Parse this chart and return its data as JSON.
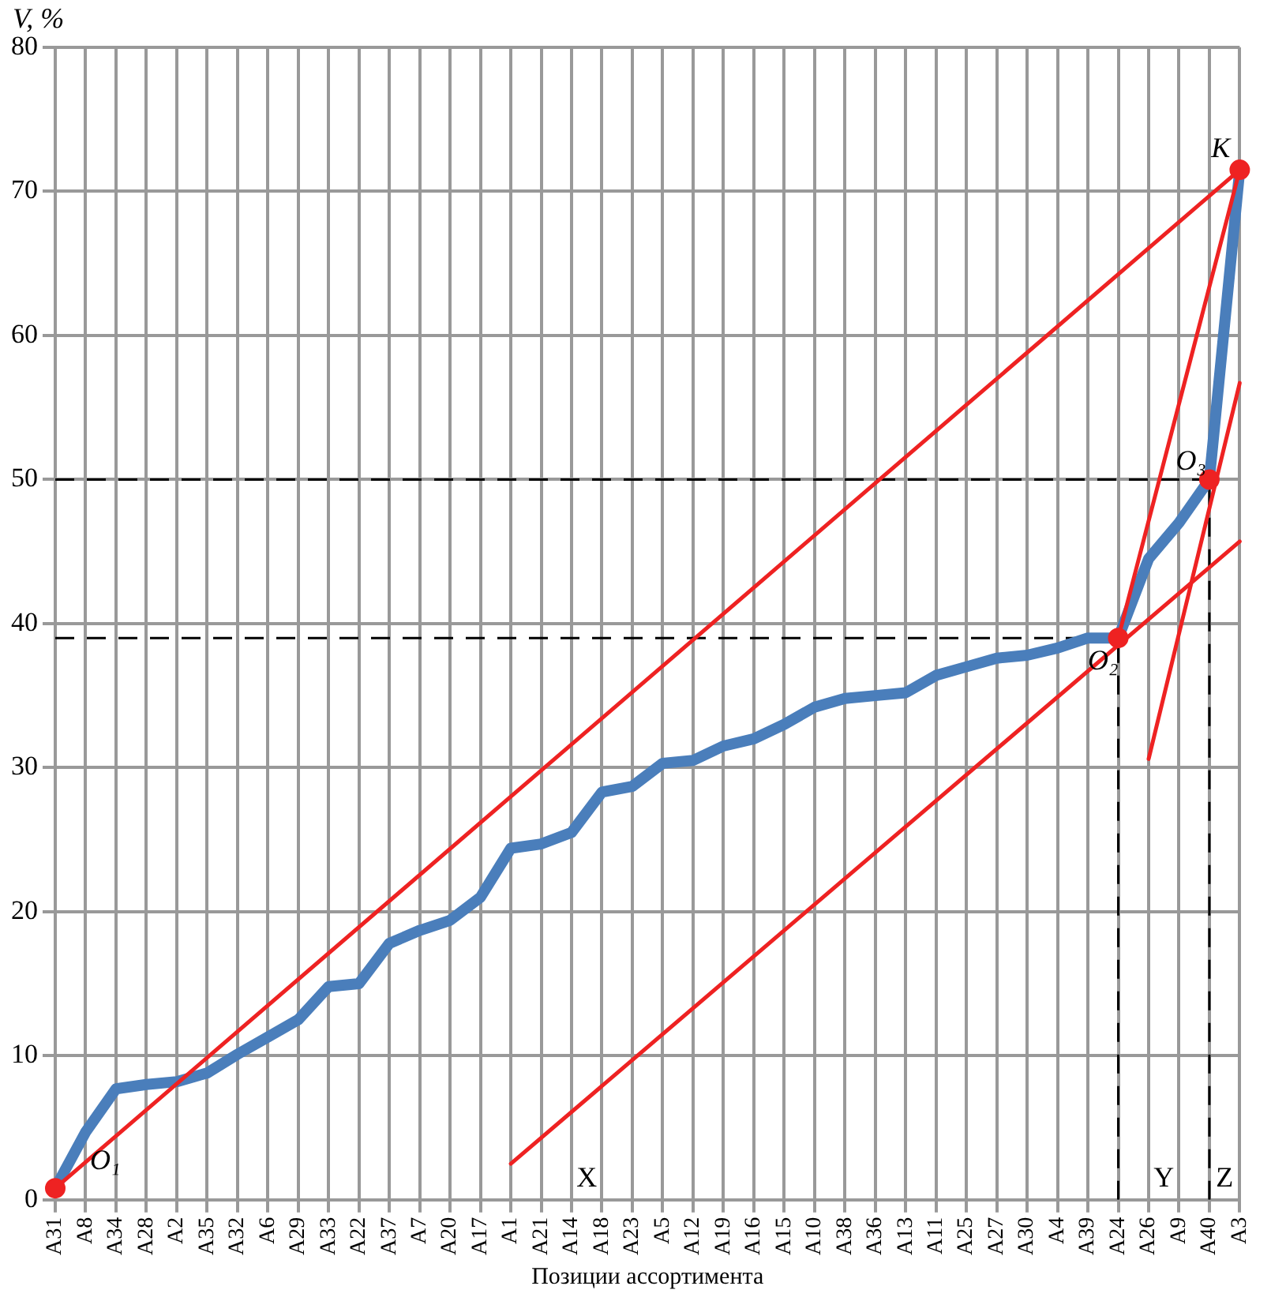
{
  "chart_data": {
    "type": "line",
    "ylabel": "V, %",
    "xlabel": "Позиции ассортимента",
    "categories": [
      "A31",
      "A8",
      "A34",
      "A28",
      "A2",
      "A35",
      "A32",
      "A6",
      "A29",
      "A33",
      "A22",
      "A37",
      "A7",
      "A20",
      "A17",
      "A1",
      "A21",
      "A14",
      "A18",
      "A23",
      "A5",
      "A12",
      "A19",
      "A16",
      "A15",
      "A10",
      "A38",
      "A36",
      "A13",
      "A11",
      "A25",
      "A27",
      "A30",
      "A4",
      "A39",
      "A24",
      "A26",
      "A9",
      "A40",
      "A3"
    ],
    "series": [
      {
        "color": "#4a7ebb",
        "values": [
          0.8,
          4.7,
          7.7,
          8.0,
          8.2,
          8.8,
          10.1,
          11.3,
          12.5,
          14.8,
          15.0,
          17.8,
          18.7,
          19.4,
          21.0,
          24.4,
          24.7,
          25.5,
          28.3,
          28.7,
          30.3,
          30.5,
          31.5,
          32.0,
          33.0,
          34.2,
          34.8,
          35.0,
          35.2,
          36.4,
          37.0,
          37.6,
          37.8,
          38.3,
          39.0,
          39.0,
          44.5,
          47.0,
          50.0,
          71.5
        ]
      },
      {
        "color": "#ee2222",
        "x": [
          "A31",
          "A3"
        ],
        "values": [
          0.8,
          71.5
        ]
      },
      {
        "color": "#ee2222",
        "x": [
          "A1",
          "A3"
        ],
        "values": [
          2.5,
          45.7
        ]
      },
      {
        "color": "#ee2222",
        "x": [
          "A24",
          "A3"
        ],
        "values": [
          39.0,
          71.5
        ]
      },
      {
        "color": "#ee2222",
        "x": [
          "A26",
          "A3"
        ],
        "values": [
          30.6,
          56.7
        ]
      },
      {
        "color": "#000000",
        "line_style": "dashed",
        "x": [
          "A31",
          "A24"
        ],
        "values": [
          39.0,
          39.0
        ]
      },
      {
        "color": "#000000",
        "line_style": "dashed",
        "x": [
          "A31",
          "A40"
        ],
        "values": [
          50.0,
          50.0
        ]
      },
      {
        "color": "#000000",
        "line_style": "dashed",
        "x": [
          "A24",
          "A24"
        ],
        "values": [
          0,
          39.0
        ]
      },
      {
        "color": "#000000",
        "line_style": "dashed",
        "x": [
          "A40",
          "A40"
        ],
        "values": [
          0,
          50.0
        ]
      },
      {
        "type": "scatter",
        "marker": "circle",
        "color": "#ee2222",
        "x": [
          "A31",
          "A24",
          "A40",
          "A3"
        ],
        "values": [
          0.8,
          39.0,
          50.0,
          71.5
        ]
      }
    ],
    "ylim": [
      0,
      80
    ],
    "yticks": [
      0,
      10,
      20,
      30,
      40,
      50,
      60,
      70,
      80
    ],
    "grid": true,
    "legend": false,
    "annotations": [
      {
        "text": "O₁",
        "x": "A31",
        "y": 0.8
      },
      {
        "text": "O₂",
        "x": "A24",
        "y": 39.0
      },
      {
        "text": "O₃",
        "x": "A40",
        "y": 50.0
      },
      {
        "text": "K",
        "x": "A3",
        "y": 71.5
      },
      "X",
      "Y",
      "Z"
    ]
  }
}
